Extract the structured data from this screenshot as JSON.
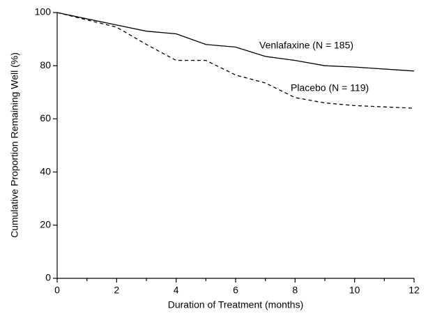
{
  "chart_data": {
    "type": "line",
    "x_label": "Duration of Treatment (months)",
    "y_label": "Cumulative Proportion Remaining Well (%)",
    "xlim": [
      0,
      12
    ],
    "ylim": [
      0,
      100
    ],
    "xticks": [
      0,
      2,
      4,
      6,
      8,
      10,
      12
    ],
    "xminor_ticks": [
      1,
      3,
      5,
      7,
      9,
      11
    ],
    "yticks": [
      0,
      20,
      40,
      60,
      80,
      100
    ],
    "grid": false,
    "x": [
      0,
      2,
      3,
      4,
      5,
      6,
      7,
      8,
      9,
      10,
      12
    ],
    "series": [
      {
        "name": "Venlafaxine (N = 185)",
        "color": "#000000",
        "dash": "solid",
        "values": [
          100,
          95.3,
          93,
          92,
          88,
          87,
          83.5,
          82,
          80,
          79.5,
          78
        ]
      },
      {
        "name": "Placebo (N = 119)",
        "color": "#000000",
        "dash": "dashed",
        "values": [
          100,
          94.5,
          88,
          82,
          82,
          76.5,
          73.5,
          68,
          66,
          65,
          64
        ]
      }
    ]
  }
}
